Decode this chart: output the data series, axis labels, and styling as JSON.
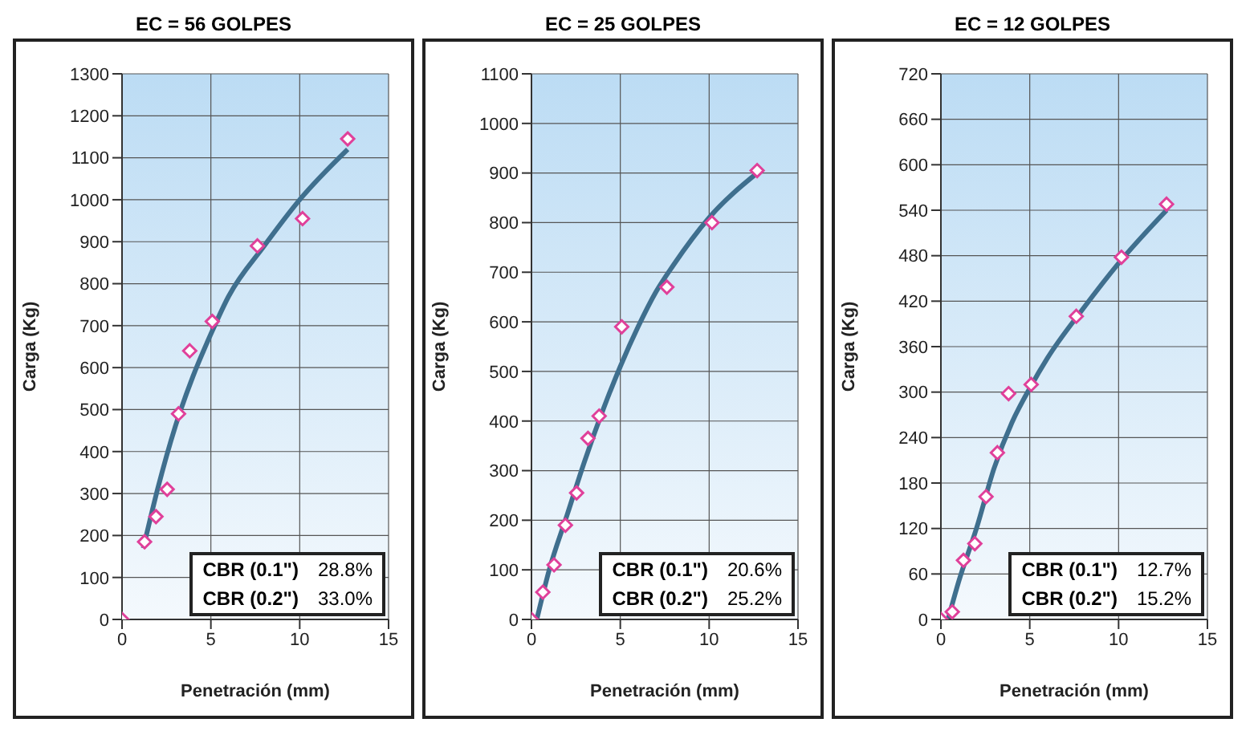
{
  "chart_data": [
    {
      "type": "scatter",
      "title": "EC = 56 GOLPES",
      "xlabel": "Penetración (mm)",
      "ylabel": "Carga (Kg)",
      "xlim": [
        0,
        15
      ],
      "xticks": [
        0,
        5,
        10,
        15
      ],
      "ylim": [
        0,
        1300
      ],
      "yticks": [
        0,
        100,
        200,
        300,
        400,
        500,
        600,
        700,
        800,
        900,
        1000,
        1100,
        1200,
        1300
      ],
      "grid": true,
      "annotations": [
        "CBR (0.1\")",
        "28.8%",
        "CBR (0.2\")",
        "33.0%"
      ],
      "series": [
        {
          "marker": "diamond",
          "color": "#e0409a",
          "x": [
            0,
            1.27,
            1.91,
            2.54,
            3.18,
            3.81,
            5.08,
            7.62,
            10.16,
            12.7
          ],
          "values": [
            0,
            185,
            245,
            310,
            490,
            640,
            710,
            890,
            955,
            1145
          ]
        },
        {
          "type": "line",
          "marker": "none",
          "color": "#3f6f8e",
          "x": [
            1.2,
            2,
            3,
            4,
            5,
            6,
            8,
            10,
            12.7
          ],
          "values": [
            170,
            310,
            460,
            580,
            680,
            770,
            890,
            1000,
            1120
          ]
        }
      ]
    },
    {
      "type": "scatter",
      "title": "EC = 25 GOLPES",
      "xlabel": "Penetración (mm)",
      "ylabel": "Carga (Kg)",
      "xlim": [
        0,
        15
      ],
      "xticks": [
        0,
        5,
        10,
        15
      ],
      "ylim": [
        0,
        1100
      ],
      "yticks": [
        0,
        100,
        200,
        300,
        400,
        500,
        600,
        700,
        800,
        900,
        1000,
        1100
      ],
      "grid": true,
      "annotations": [
        "CBR (0.1\")",
        "20.6%",
        "CBR (0.2\")",
        "25.2%"
      ],
      "series": [
        {
          "marker": "diamond",
          "color": "#e0409a",
          "x": [
            0,
            0.64,
            1.27,
            1.91,
            2.54,
            3.18,
            3.81,
            5.08,
            7.62,
            10.16,
            12.7
          ],
          "values": [
            0,
            55,
            110,
            190,
            255,
            365,
            410,
            590,
            670,
            800,
            905
          ]
        },
        {
          "type": "line",
          "marker": "none",
          "color": "#3f6f8e",
          "x": [
            0.3,
            1,
            2,
            3,
            4,
            5,
            6,
            7,
            8,
            10,
            12.7
          ],
          "values": [
            0,
            100,
            210,
            320,
            420,
            510,
            590,
            660,
            715,
            810,
            900
          ]
        }
      ]
    },
    {
      "type": "scatter",
      "title": "EC = 12 GOLPES",
      "xlabel": "Penetración (mm)",
      "ylabel": "Carga (Kg)",
      "xlim": [
        0,
        15
      ],
      "xticks": [
        0,
        5,
        10,
        15
      ],
      "ylim": [
        0,
        720
      ],
      "yticks": [
        0,
        60,
        120,
        180,
        240,
        300,
        360,
        420,
        480,
        540,
        600,
        660,
        720
      ],
      "grid": true,
      "annotations": [
        "CBR (0.1\")",
        "12.7%",
        "CBR (0.2\")",
        "15.2%"
      ],
      "series": [
        {
          "marker": "diamond",
          "color": "#e0409a",
          "x": [
            0,
            0.64,
            1.27,
            1.91,
            2.54,
            3.18,
            3.81,
            5.08,
            7.62,
            10.16,
            12.7
          ],
          "values": [
            0,
            10,
            78,
            100,
            162,
            220,
            298,
            310,
            400,
            478,
            548
          ]
        },
        {
          "type": "line",
          "marker": "none",
          "color": "#3f6f8e",
          "x": [
            0.4,
            1,
            2,
            3,
            4,
            5,
            6,
            8,
            10,
            12.7
          ],
          "values": [
            0,
            50,
            120,
            200,
            260,
            305,
            345,
            410,
            470,
            540
          ]
        }
      ]
    }
  ]
}
